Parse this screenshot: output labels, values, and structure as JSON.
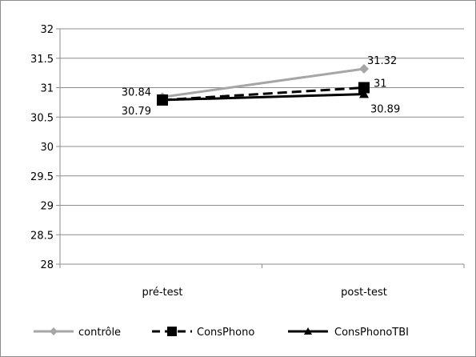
{
  "chart_data": {
    "type": "line",
    "categories": [
      "pré-test",
      "post-test"
    ],
    "ylim": [
      28,
      32
    ],
    "yticks": [
      28,
      28.5,
      29,
      29.5,
      30,
      30.5,
      31,
      31.5,
      32
    ],
    "grid": true,
    "legend_position": "bottom",
    "series": [
      {
        "name": "contrôle",
        "values": [
          30.84,
          31.32
        ],
        "labels": [
          "30.84",
          "31.32"
        ],
        "color": "#a6a6a6",
        "marker": "diamond",
        "dash": "solid"
      },
      {
        "name": "ConsPhono",
        "values": [
          30.79,
          31
        ],
        "labels": [
          "",
          "31"
        ],
        "color": "#000000",
        "marker": "square",
        "dash": "dashed"
      },
      {
        "name": "ConsPhonoTBI",
        "values": [
          30.79,
          30.89
        ],
        "labels": [
          "30.79",
          "30.89"
        ],
        "color": "#000000",
        "marker": "triangle",
        "dash": "solid"
      }
    ]
  }
}
